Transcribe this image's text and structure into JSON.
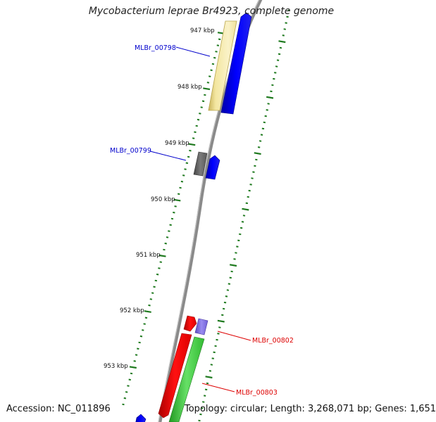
{
  "title": "Mycobacterium leprae Br4923, complete genome",
  "footer": {
    "accession": "Accession: NC_011896",
    "summary": "Topology: circular; Length: 3,268,071 bp; Genes: 1,651"
  },
  "ticks": [
    {
      "label": "947 kbp"
    },
    {
      "label": "948 kbp"
    },
    {
      "label": "949 kbp"
    },
    {
      "label": "950 kbp"
    },
    {
      "label": "951 kbp"
    },
    {
      "label": "952 kbp"
    },
    {
      "label": "953 kbp"
    }
  ],
  "genes": [
    {
      "label": "MLBr_00798",
      "color": "#0000cc"
    },
    {
      "label": "MLBr_00799",
      "color": "#0000cc"
    },
    {
      "label": "MLBr_00802",
      "color": "#dd0000"
    },
    {
      "label": "MLBr_00803",
      "color": "#dd0000"
    }
  ],
  "colors": {
    "backbone": "#8a8a8a",
    "tick": "#1f7a1f",
    "cds": "#0000ee",
    "pseudogene_khaki": "#f3e6a0",
    "gray_feature": "#6f6f6f",
    "red_feature": "#ee0000",
    "purple_feature": "#7f6fd8",
    "green_feature": "#33cc33"
  }
}
